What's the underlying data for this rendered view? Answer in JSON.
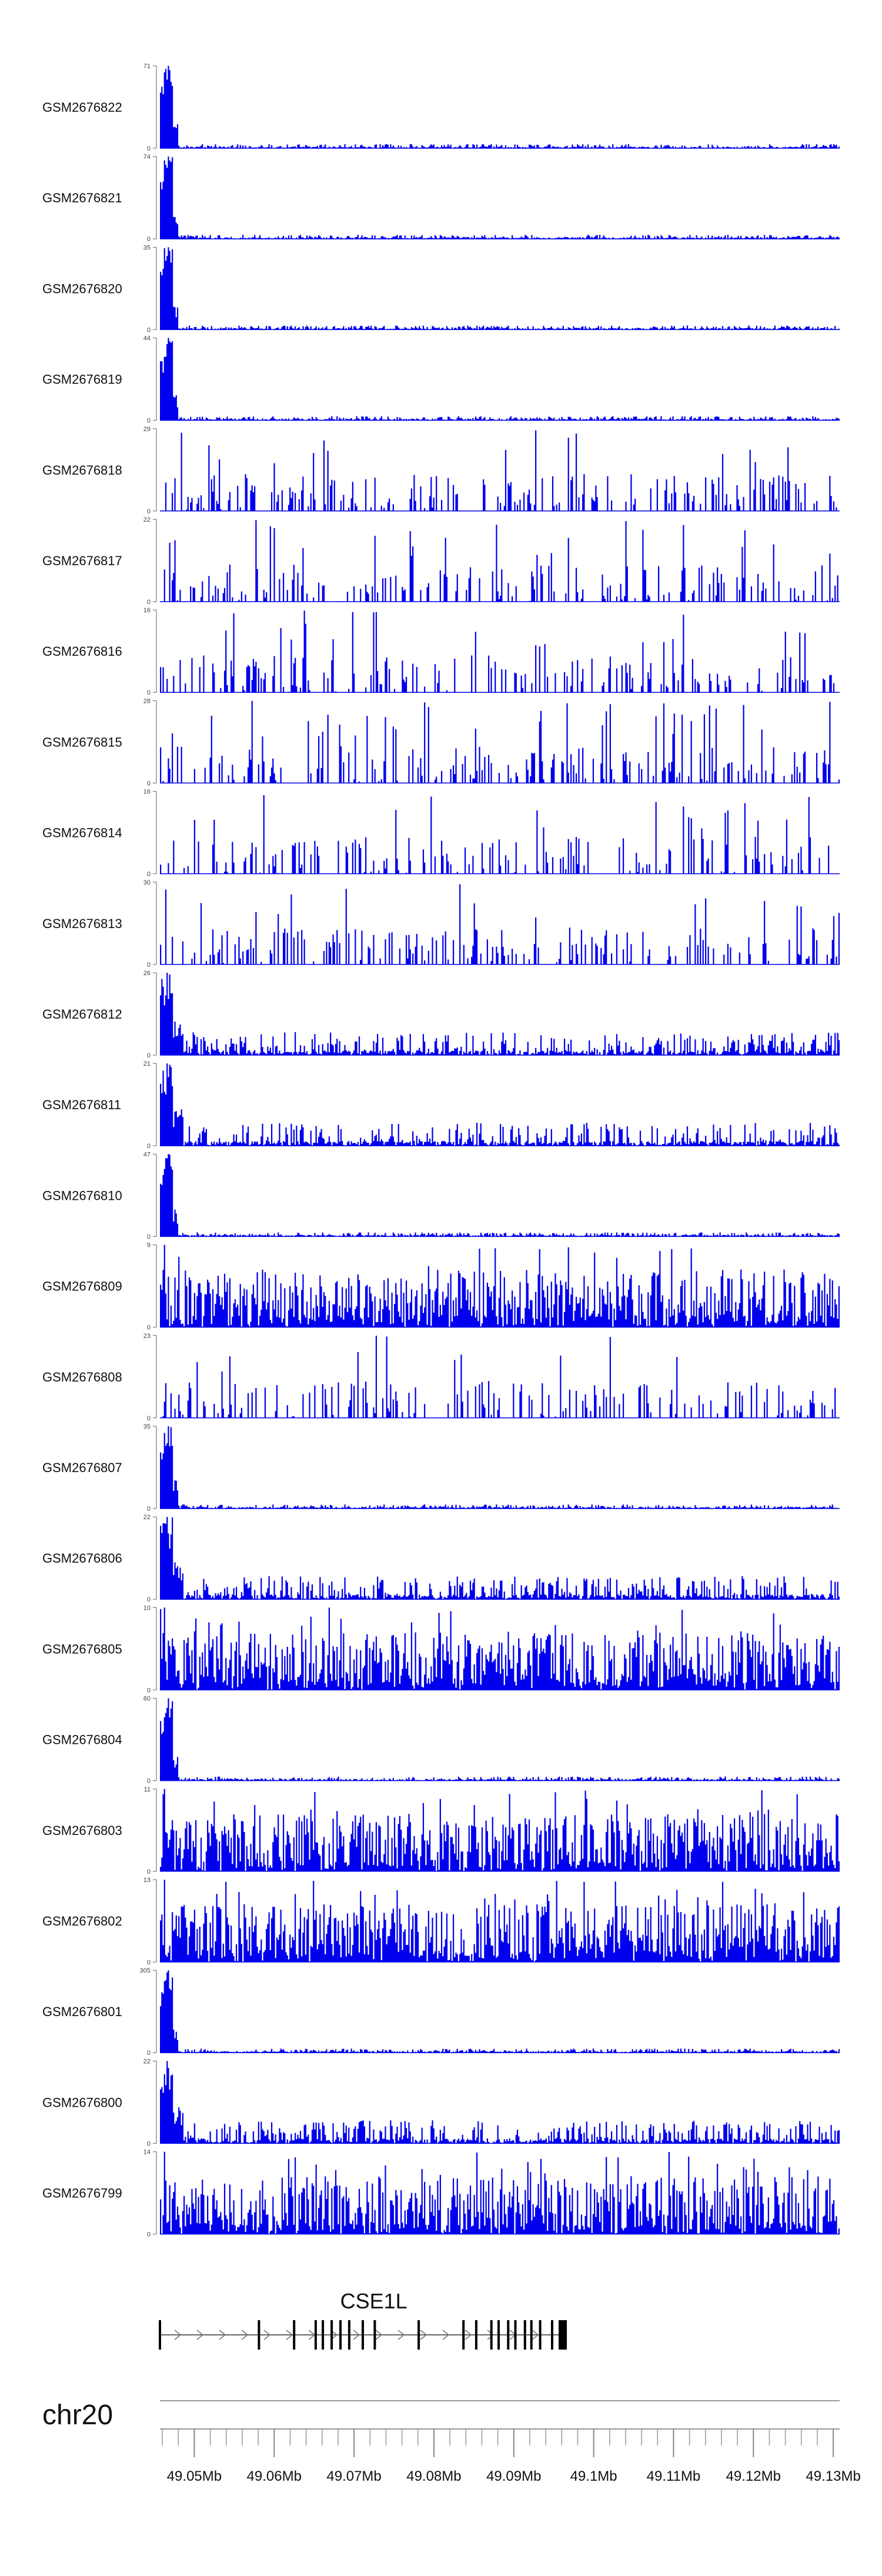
{
  "chart_data": {
    "type": "area",
    "title": "",
    "chromosome": "chr20",
    "xlim": [
      49.0457,
      49.1308
    ],
    "x_unit": "Mb",
    "x_ticks": [
      49.05,
      49.06,
      49.07,
      49.08,
      49.09,
      49.1,
      49.11,
      49.12,
      49.13
    ],
    "x_tick_labels": [
      "49.05Mb",
      "49.06Mb",
      "49.07Mb",
      "49.08Mb",
      "49.09Mb",
      "49.1Mb",
      "49.11Mb",
      "49.12Mb",
      "49.13Mb"
    ],
    "minor_tick_step": 0.002,
    "fill_color": "#0000ee",
    "gene": {
      "name": "CSE1L",
      "start": 49.0457,
      "end": 49.0963,
      "strand": "+",
      "exons": [
        49.0457,
        49.0581,
        49.0625,
        49.0652,
        49.0661,
        49.0672,
        49.0683,
        49.0694,
        49.0711,
        49.0726,
        49.0781,
        49.0837,
        49.0853,
        49.0872,
        49.0881,
        49.0893,
        49.0902,
        49.0914,
        49.0922,
        49.0933,
        49.0948,
        49.0962
      ]
    },
    "tracks": [
      {
        "name": "GSM2676822",
        "ymax": 71,
        "ymin": 0,
        "profile": "spike"
      },
      {
        "name": "GSM2676821",
        "ymax": 74,
        "ymin": 0,
        "profile": "spike"
      },
      {
        "name": "GSM2676820",
        "ymax": 35,
        "ymin": 0,
        "profile": "spike"
      },
      {
        "name": "GSM2676819",
        "ymax": 44,
        "ymin": 0,
        "profile": "spike"
      },
      {
        "name": "GSM2676818",
        "ymax": 29,
        "ymin": 0,
        "profile": "sparse"
      },
      {
        "name": "GSM2676817",
        "ymax": 22,
        "ymin": 0,
        "profile": "sparse"
      },
      {
        "name": "GSM2676816",
        "ymax": 16,
        "ymin": 0,
        "profile": "sparse"
      },
      {
        "name": "GSM2676815",
        "ymax": 28,
        "ymin": 0,
        "profile": "sparse"
      },
      {
        "name": "GSM2676814",
        "ymax": 16,
        "ymin": 0,
        "profile": "sparse"
      },
      {
        "name": "GSM2676813",
        "ymax": 30,
        "ymin": 0,
        "profile": "sparse"
      },
      {
        "name": "GSM2676812",
        "ymax": 26,
        "ymin": 0,
        "profile": "spike_low"
      },
      {
        "name": "GSM2676811",
        "ymax": 21,
        "ymin": 0,
        "profile": "spike_low"
      },
      {
        "name": "GSM2676810",
        "ymax": 47,
        "ymin": 0,
        "profile": "spike"
      },
      {
        "name": "GSM2676809",
        "ymax": 9,
        "ymin": 0,
        "profile": "dense"
      },
      {
        "name": "GSM2676808",
        "ymax": 23,
        "ymin": 0,
        "profile": "sparse"
      },
      {
        "name": "GSM2676807",
        "ymax": 35,
        "ymin": 0,
        "profile": "spike"
      },
      {
        "name": "GSM2676806",
        "ymax": 22,
        "ymin": 0,
        "profile": "spike_low"
      },
      {
        "name": "GSM2676805",
        "ymax": 10,
        "ymin": 0,
        "profile": "dense"
      },
      {
        "name": "GSM2676804",
        "ymax": 60,
        "ymin": 0,
        "profile": "spike"
      },
      {
        "name": "GSM2676803",
        "ymax": 11,
        "ymin": 0,
        "profile": "dense"
      },
      {
        "name": "GSM2676802",
        "ymax": 13,
        "ymin": 0,
        "profile": "dense"
      },
      {
        "name": "GSM2676801",
        "ymax": 305,
        "ymin": 0,
        "profile": "spike"
      },
      {
        "name": "GSM2676800",
        "ymax": 22,
        "ymin": 0,
        "profile": "spike_low"
      },
      {
        "name": "GSM2676799",
        "ymax": 14,
        "ymin": 0,
        "profile": "dense"
      }
    ]
  }
}
